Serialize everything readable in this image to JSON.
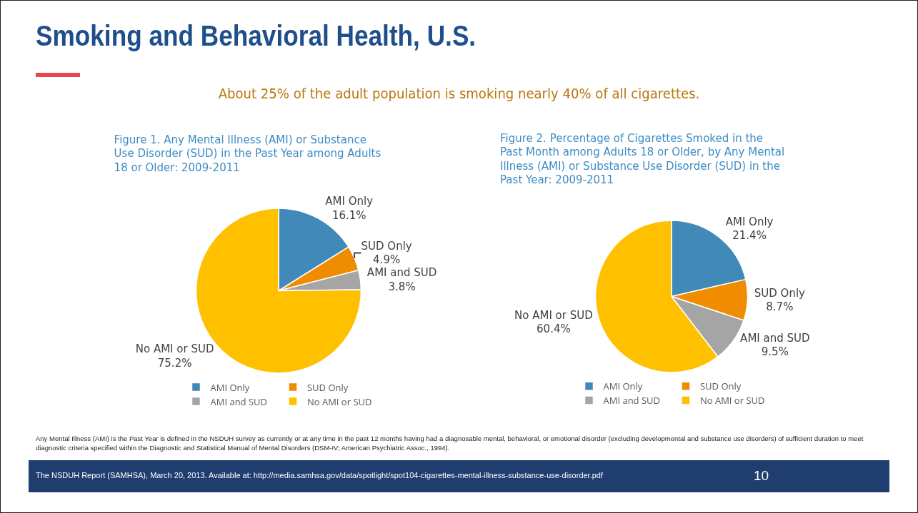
{
  "chart_data": [
    {
      "type": "other",
      "title": "Smoking and Behavioral Health, U.S.",
      "subtitle": "About 25% of the adult population is smoking nearly 40% of all cigarettes.",
      "annotations": [
        "Any Mental Illness (AMI) is the Past Year is defined in the NSDUH survey as currently or at any time in the past 12 months having had a diagnosable mental, behavioral, or emotional disorder (excluding developmental and substance use disorders) of sufficient duration to meet diagnostic criteria specified within the Diagnostic and Statistical Manual of Mental Disorders (DSM-IV; American Psychiatric Assoc., 1994).",
        "The NSDUH Report (SAMHSA), March 20, 2013.  Available at: http://media.samhsa.gov/data/spotlight/spot104-cigarettes-mental-illness-substance-use-disorder.pdf",
        "10"
      ]
    },
    {
      "type": "pie",
      "title": "Figure 1. Any Mental Illness (AMI) or Substance Use Disorder (SUD) in the Past Year among Adults 18 or Older: 2009-2011",
      "categories": [
        "AMI Only",
        "SUD Only",
        "AMI and SUD",
        "No AMI or SUD"
      ],
      "values": [
        16.1,
        4.9,
        3.8,
        75.2
      ],
      "value_labels": [
        "16.1%",
        "4.9%",
        "3.8%",
        "75.2%"
      ],
      "colors": [
        "#4189b9",
        "#f08c00",
        "#a5a5a5",
        "#ffc000"
      ],
      "legend": "bottom"
    },
    {
      "type": "pie",
      "title": "Figure 2. Percentage of Cigarettes Smoked in the Past Month among Adults 18 or Older, by Any Mental Illness (AMI) or Substance Use Disorder (SUD) in the Past Year: 2009-2011",
      "categories": [
        "AMI Only",
        "SUD Only",
        "AMI and SUD",
        "No AMI or SUD"
      ],
      "values": [
        21.4,
        8.7,
        9.5,
        60.4
      ],
      "value_labels": [
        "21.4%",
        "8.7%",
        "9.5%",
        "60.4%"
      ],
      "colors": [
        "#4189b9",
        "#f08c00",
        "#a5a5a5",
        "#ffc000"
      ],
      "legend": "bottom"
    }
  ]
}
